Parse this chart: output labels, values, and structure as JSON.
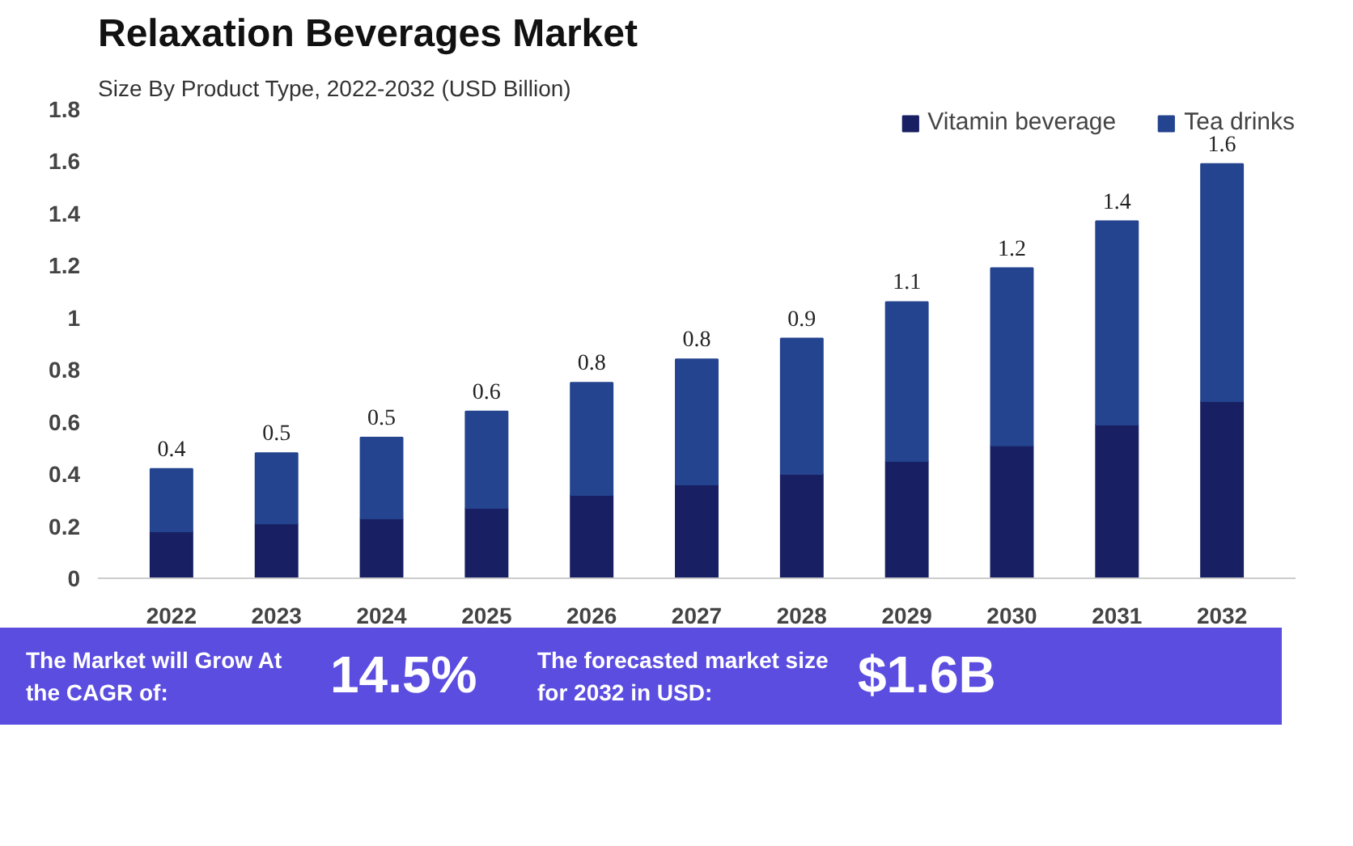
{
  "chart_data": {
    "type": "bar",
    "title": "Relaxation Beverages Market",
    "subtitle": "Size By Product Type, 2022-2032 (USD Billion)",
    "categories": [
      "2022",
      "2023",
      "2024",
      "2025",
      "2026",
      "2027",
      "2028",
      "2029",
      "2030",
      "2031",
      "2032"
    ],
    "series": [
      {
        "name": "Vitamin beverage",
        "color": "#182063",
        "values": [
          0.18,
          0.21,
          0.23,
          0.27,
          0.32,
          0.36,
          0.4,
          0.45,
          0.51,
          0.59,
          0.68
        ]
      },
      {
        "name": "Tea drinks",
        "color": "#24448f",
        "values": [
          0.24,
          0.27,
          0.31,
          0.37,
          0.43,
          0.48,
          0.52,
          0.61,
          0.68,
          0.78,
          0.91
        ]
      }
    ],
    "stacked": true,
    "totals": [
      "0.4",
      "0.5",
      "0.5",
      "0.6",
      "0.8",
      "0.8",
      "0.9",
      "1.1",
      "1.2",
      "1.4",
      "1.6"
    ],
    "ylim": [
      0,
      1.8
    ],
    "yticks": [
      0,
      {
        "value": 0.2,
        "label": "0.2"
      },
      {
        "value": 0.4,
        "label": "0.4"
      },
      {
        "value": 0.6,
        "label": "0.6"
      },
      {
        "value": 0.8,
        "label": "0.8"
      },
      1,
      {
        "value": 1.2,
        "label": "1.2"
      },
      {
        "value": 1.4,
        "label": "1.4"
      },
      {
        "value": 1.6,
        "label": "1.6"
      },
      {
        "value": 1.8,
        "label": "1.8"
      }
    ],
    "grid": false,
    "legend": "top right",
    "annotations": [
      "The Market will Grow At the CAGR of:",
      "14.5%",
      "The forecasted market size for 2032 in USD:",
      "$1.6B"
    ]
  }
}
